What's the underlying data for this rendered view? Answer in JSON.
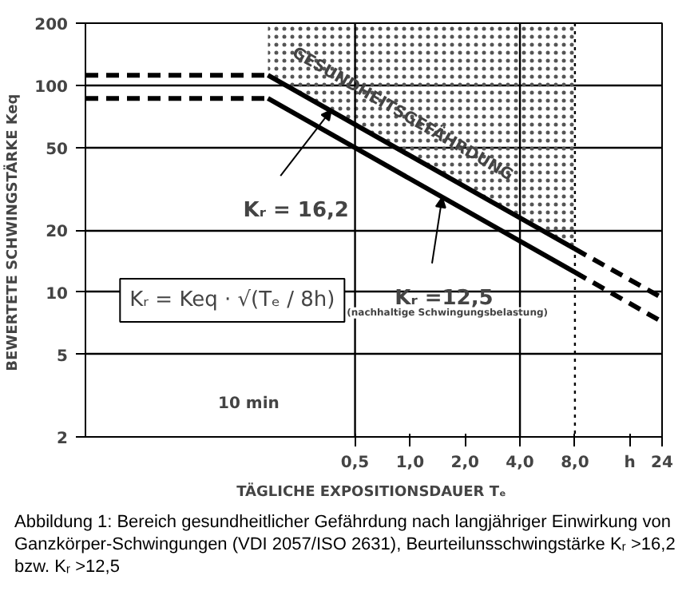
{
  "chart_data": {
    "type": "line",
    "xlabel": "TÄGLICHE EXPOSITIONSDAUER  Tₑ",
    "ylabel": "BEWERTETE SCHWINGSTÄRKE  Keq",
    "log": "xy",
    "xlim": [
      0.0167,
      24
    ],
    "xticks": [
      {
        "value": 0.5,
        "label": "0,5"
      },
      {
        "value": 1,
        "label": "1,0"
      },
      {
        "value": 2,
        "label": "2,0"
      },
      {
        "value": 4,
        "label": "4,0"
      },
      {
        "value": 8,
        "label": "8,0"
      },
      {
        "value": 16,
        "label": "h"
      },
      24
    ],
    "ylim": [
      2,
      200
    ],
    "yticks": [
      2,
      5,
      10,
      20,
      50,
      100,
      200
    ],
    "grid": "y",
    "series": [
      {
        "x": [
          0.0167,
          0.1667
        ],
        "values": [
          112,
          112
        ],
        "color": "#000000",
        "line_style": "dashed"
      },
      {
        "x": [
          0.1667,
          8
        ],
        "values": [
          112,
          16.2
        ],
        "color": "#000000",
        "line_style": "solid",
        "lower": [
          112,
          16.2
        ],
        "upper": [
          200,
          200
        ]
      },
      {
        "x": [
          8,
          24
        ],
        "values": [
          16.2,
          9.4
        ],
        "color": "#000000",
        "line_style": "dashed"
      },
      {
        "x": [
          0.0167,
          0.1667
        ],
        "values": [
          86.6,
          86.6
        ],
        "color": "#000000",
        "line_style": "dashed"
      },
      {
        "x": [
          0.1667,
          8
        ],
        "values": [
          86.6,
          12.5
        ],
        "color": "#000000",
        "line_style": "solid"
      },
      {
        "x": [
          8,
          24
        ],
        "values": [
          12.5,
          7.2
        ],
        "color": "#000000",
        "line_style": "dashed"
      }
    ],
    "ref_lines": [
      {
        "axis": "x",
        "value": 0.5,
        "color": "#000000",
        "line_style": "solid"
      },
      {
        "axis": "x",
        "value": 4,
        "color": "#000000",
        "line_style": "solid"
      },
      {
        "axis": "x",
        "value": 8,
        "color": "#000000",
        "line_style": "dotted"
      }
    ],
    "annotations": [
      "GESUNDHEITSGEFÄHRDUNG",
      {
        "text": "Kᵣ = 16,2",
        "x": 0.37,
        "y": 76
      },
      {
        "text": "Kᵣ =12,5\n(nachhaltige Schwingungsbelastung)",
        "x": 1.5,
        "y": 28.7
      },
      "Kᵣ = Keq · √(Tₑ / 8h)",
      "10 min",
      "Abbildung 1: Bereich gesundheitlicher Gefährdung nach langjähriger Einwirkung von Ganzkörper-Schwingungen (VDI 2057/ISO 2631), Beurteilunsschwingstärke Kᵣ >16,2 bzw. Kᵣ >12,5"
    ]
  }
}
